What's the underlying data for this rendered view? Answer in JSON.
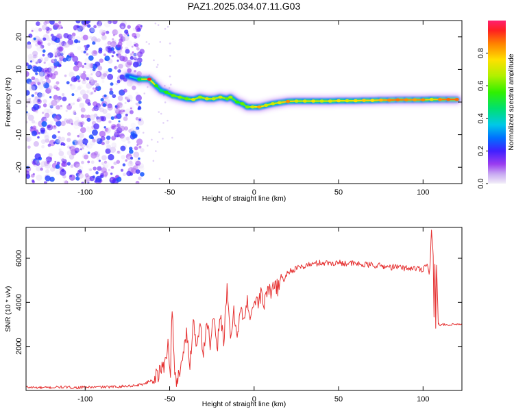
{
  "title": "PAZ1.2025.034.07.11.G03",
  "chart_data": [
    {
      "type": "heatmap",
      "xlabel": "Height of straight line (km)",
      "ylabel": "Frequency (Hz)",
      "xlim": [
        -135,
        123
      ],
      "ylim": [
        -25,
        25
      ],
      "xticks": [
        -100,
        -50,
        0,
        50,
        100
      ],
      "yticks": [
        -20,
        -10,
        0,
        10,
        20
      ],
      "xtick_labels": [
        "-100",
        "-50",
        "0",
        "50",
        "100"
      ],
      "ytick_labels": [
        "-20",
        "-10",
        "0",
        "10",
        "20"
      ],
      "colorbar": {
        "label": "Normalized spectral amplitude",
        "range": [
          0,
          1
        ],
        "ticks": [
          0.0,
          0.2,
          0.4,
          0.6,
          0.8
        ],
        "tick_labels": [
          "0.0",
          "0.2",
          "0.4",
          "0.6",
          "0.8"
        ]
      },
      "noise_region_x": [
        -135,
        -66
      ],
      "ridge": [
        {
          "x": -75,
          "y": 8,
          "a": 0.25
        },
        {
          "x": -68,
          "y": 7,
          "a": 0.5
        },
        {
          "x": -62,
          "y": 7,
          "a": 0.95
        },
        {
          "x": -58,
          "y": 5,
          "a": 0.55
        },
        {
          "x": -55,
          "y": 3.5,
          "a": 0.45
        },
        {
          "x": -52,
          "y": 3,
          "a": 0.55
        },
        {
          "x": -48,
          "y": 2,
          "a": 0.6
        },
        {
          "x": -44,
          "y": 1.5,
          "a": 0.62
        },
        {
          "x": -40,
          "y": 1,
          "a": 0.6
        },
        {
          "x": -36,
          "y": 0.8,
          "a": 0.7
        },
        {
          "x": -32,
          "y": 1.5,
          "a": 0.65
        },
        {
          "x": -28,
          "y": 1,
          "a": 0.7
        },
        {
          "x": -24,
          "y": 1,
          "a": 0.68
        },
        {
          "x": -20,
          "y": 1.5,
          "a": 0.7
        },
        {
          "x": -16,
          "y": 1,
          "a": 0.6
        },
        {
          "x": -14,
          "y": 1.5,
          "a": 0.65
        },
        {
          "x": -10,
          "y": 0,
          "a": 0.55
        },
        {
          "x": -7,
          "y": -0.5,
          "a": 0.6
        },
        {
          "x": -4,
          "y": -1.5,
          "a": 0.62
        },
        {
          "x": -1,
          "y": -1.5,
          "a": 0.7
        },
        {
          "x": 3,
          "y": -1.5,
          "a": 0.82
        },
        {
          "x": 7,
          "y": -1,
          "a": 0.7
        },
        {
          "x": 11,
          "y": -0.5,
          "a": 0.7
        },
        {
          "x": 15,
          "y": -0.2,
          "a": 0.72
        },
        {
          "x": 20,
          "y": 0.2,
          "a": 0.85
        },
        {
          "x": 25,
          "y": 0.3,
          "a": 0.7
        },
        {
          "x": 30,
          "y": 0.3,
          "a": 0.72
        },
        {
          "x": 35,
          "y": 0.3,
          "a": 0.74
        },
        {
          "x": 40,
          "y": 0.3,
          "a": 0.7
        },
        {
          "x": 45,
          "y": 0.3,
          "a": 0.72
        },
        {
          "x": 50,
          "y": 0.4,
          "a": 0.75
        },
        {
          "x": 55,
          "y": 0.4,
          "a": 0.72
        },
        {
          "x": 60,
          "y": 0.4,
          "a": 0.75
        },
        {
          "x": 65,
          "y": 0.5,
          "a": 0.78
        },
        {
          "x": 70,
          "y": 0.5,
          "a": 0.76
        },
        {
          "x": 75,
          "y": 0.6,
          "a": 0.8
        },
        {
          "x": 80,
          "y": 0.6,
          "a": 0.85
        },
        {
          "x": 85,
          "y": 0.7,
          "a": 0.87
        },
        {
          "x": 90,
          "y": 0.7,
          "a": 0.85
        },
        {
          "x": 95,
          "y": 0.7,
          "a": 0.83
        },
        {
          "x": 100,
          "y": 0.7,
          "a": 0.85
        },
        {
          "x": 105,
          "y": 0.8,
          "a": 0.72
        },
        {
          "x": 110,
          "y": 0.8,
          "a": 0.85
        },
        {
          "x": 115,
          "y": 0.8,
          "a": 0.88
        },
        {
          "x": 120,
          "y": 0.8,
          "a": 0.88
        }
      ]
    },
    {
      "type": "line",
      "xlabel": "Height of straight line (km)",
      "ylabel": "SNR (10 * v/v)",
      "xlim": [
        -135,
        123
      ],
      "ylim": [
        0,
        7400
      ],
      "xticks": [
        -100,
        -50,
        0,
        50,
        100
      ],
      "yticks": [
        2000,
        4000,
        6000
      ],
      "xtick_labels": [
        "-100",
        "-50",
        "0",
        "50",
        "100"
      ],
      "ytick_labels": [
        "2000",
        "4000",
        "6000"
      ],
      "color": "#e53030",
      "series": [
        {
          "x": [
            -135,
            -125,
            -115,
            -105,
            -95,
            -85,
            -75,
            -70,
            -65,
            -60,
            -56,
            -53,
            -51,
            -49.5,
            -48.5,
            -47,
            -46,
            -44,
            -42,
            -40,
            -38,
            -36,
            -34,
            -32,
            -30,
            -28,
            -26,
            -24,
            -22,
            -20,
            -18,
            -16,
            -14,
            -12,
            -10,
            -8,
            -6,
            -4,
            -2,
            0,
            2,
            4,
            6,
            8,
            10,
            12,
            14,
            16,
            18,
            20,
            24,
            28,
            32,
            36,
            40,
            45,
            50,
            55,
            60,
            65,
            70,
            75,
            80,
            85,
            90,
            95,
            100,
            102,
            104,
            105,
            106,
            106.5,
            107,
            107.5,
            108,
            109,
            110,
            115,
            120,
            123
          ],
          "y": [
            150,
            120,
            150,
            130,
            150,
            160,
            200,
            230,
            300,
            500,
            800,
            1200,
            2100,
            900,
            3800,
            600,
            400,
            900,
            1700,
            2500,
            1200,
            3200,
            2000,
            3300,
            1500,
            3300,
            2000,
            3200,
            1800,
            3600,
            2200,
            4500,
            2400,
            3500,
            2600,
            3700,
            3100,
            4000,
            3400,
            4100,
            3900,
            4400,
            3900,
            4700,
            4300,
            5000,
            4600,
            5200,
            5000,
            5400,
            5500,
            5600,
            5700,
            5750,
            5800,
            5780,
            5800,
            5780,
            5750,
            5700,
            5700,
            5650,
            5600,
            5600,
            5550,
            5550,
            5500,
            5800,
            5300,
            7400,
            5900,
            3200,
            6000,
            3100,
            5900,
            3000,
            3000,
            2950,
            3000,
            2980
          ]
        }
      ]
    }
  ]
}
